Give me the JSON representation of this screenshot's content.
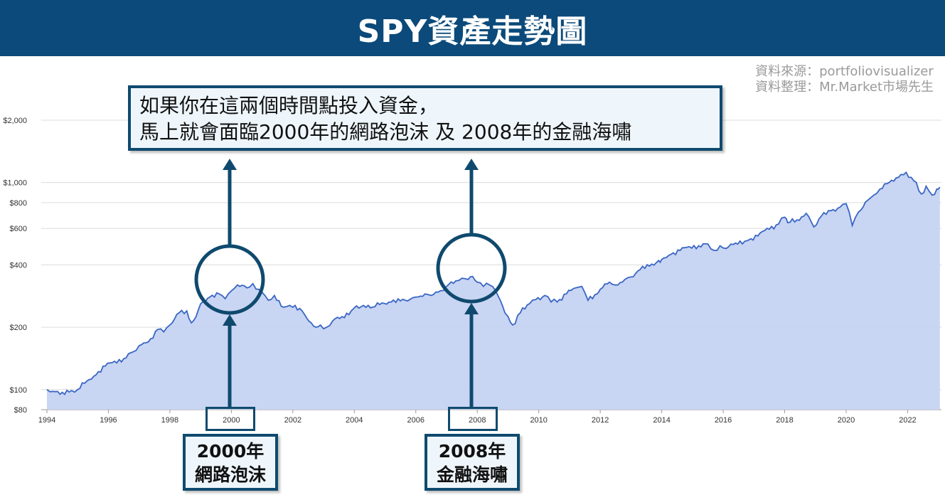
{
  "header": {
    "title": "SPY資產走勢圖"
  },
  "source": {
    "line1": "資料來源：portfoliovisualizer",
    "line2": "資料整理：Mr.Market市場先生"
  },
  "callout": {
    "line1": "如果你在這兩個時間點投入資金，",
    "line2": "馬上就會面臨2000年的網路泡沫 及 2008年的金融海嘯"
  },
  "labels": [
    {
      "line1": "2000年",
      "line2": "網路泡沫"
    },
    {
      "line1": "2008年",
      "line2": "金融海嘯"
    }
  ],
  "colors": {
    "header": "#0b4a7a",
    "line": "#3a66c4",
    "fill": "#c5d3f2",
    "annotation": "#0f4a6e"
  },
  "chart_data": {
    "type": "area",
    "title": "SPY資產走勢圖",
    "y_scale": "log",
    "ylim": [
      80,
      2150
    ],
    "xlim": [
      1993.9,
      2023.1
    ],
    "y_ticks": [
      {
        "value": 80,
        "label": "$80"
      },
      {
        "value": 100,
        "label": "$100"
      },
      {
        "value": 200,
        "label": "$200"
      },
      {
        "value": 400,
        "label": "$400"
      },
      {
        "value": 600,
        "label": "$600"
      },
      {
        "value": 800,
        "label": "$800"
      },
      {
        "value": 1000,
        "label": "$1,000"
      },
      {
        "value": 2000,
        "label": "$2,000"
      }
    ],
    "x_ticks": [
      "1994",
      "1996",
      "1998",
      "2000",
      "2002",
      "2004",
      "2006",
      "2008",
      "2010",
      "2012",
      "2014",
      "2016",
      "2018",
      "2020",
      "2022"
    ],
    "grid": "horizontal",
    "series": [
      {
        "points": [
          [
            1994.0,
            100
          ],
          [
            1994.2,
            98
          ],
          [
            1994.5,
            97
          ],
          [
            1994.8,
            99
          ],
          [
            1995.0,
            100
          ],
          [
            1995.3,
            110
          ],
          [
            1995.6,
            118
          ],
          [
            1995.9,
            130
          ],
          [
            1996.2,
            137
          ],
          [
            1996.5,
            141
          ],
          [
            1996.8,
            152
          ],
          [
            1997.0,
            163
          ],
          [
            1997.3,
            170
          ],
          [
            1997.6,
            195
          ],
          [
            1997.8,
            190
          ],
          [
            1998.0,
            205
          ],
          [
            1998.3,
            235
          ],
          [
            1998.55,
            240
          ],
          [
            1998.7,
            210
          ],
          [
            1998.85,
            225
          ],
          [
            1999.0,
            260
          ],
          [
            1999.3,
            280
          ],
          [
            1999.6,
            290
          ],
          [
            1999.8,
            275
          ],
          [
            2000.0,
            300
          ],
          [
            2000.2,
            320
          ],
          [
            2000.5,
            310
          ],
          [
            2000.7,
            325
          ],
          [
            2000.9,
            305
          ],
          [
            2001.0,
            295
          ],
          [
            2001.2,
            270
          ],
          [
            2001.4,
            285
          ],
          [
            2001.7,
            250
          ],
          [
            2001.9,
            255
          ],
          [
            2002.0,
            250
          ],
          [
            2002.3,
            240
          ],
          [
            2002.6,
            210
          ],
          [
            2002.75,
            200
          ],
          [
            2002.9,
            205
          ],
          [
            2003.1,
            200
          ],
          [
            2003.3,
            215
          ],
          [
            2003.6,
            225
          ],
          [
            2003.9,
            240
          ],
          [
            2004.0,
            248
          ],
          [
            2004.3,
            255
          ],
          [
            2004.6,
            250
          ],
          [
            2004.9,
            262
          ],
          [
            2005.2,
            265
          ],
          [
            2005.5,
            268
          ],
          [
            2005.8,
            272
          ],
          [
            2006.0,
            280
          ],
          [
            2006.3,
            290
          ],
          [
            2006.5,
            285
          ],
          [
            2006.8,
            300
          ],
          [
            2007.0,
            315
          ],
          [
            2007.3,
            335
          ],
          [
            2007.5,
            345
          ],
          [
            2007.7,
            340
          ],
          [
            2007.85,
            352
          ],
          [
            2008.0,
            330
          ],
          [
            2008.2,
            315
          ],
          [
            2008.4,
            320
          ],
          [
            2008.6,
            300
          ],
          [
            2008.75,
            270
          ],
          [
            2008.9,
            235
          ],
          [
            2009.0,
            225
          ],
          [
            2009.15,
            205
          ],
          [
            2009.4,
            235
          ],
          [
            2009.7,
            260
          ],
          [
            2009.9,
            272
          ],
          [
            2010.2,
            285
          ],
          [
            2010.4,
            265
          ],
          [
            2010.6,
            265
          ],
          [
            2010.9,
            290
          ],
          [
            2011.2,
            310
          ],
          [
            2011.4,
            315
          ],
          [
            2011.6,
            270
          ],
          [
            2011.9,
            290
          ],
          [
            2012.0,
            305
          ],
          [
            2012.3,
            330
          ],
          [
            2012.5,
            320
          ],
          [
            2012.8,
            340
          ],
          [
            2013.0,
            350
          ],
          [
            2013.3,
            380
          ],
          [
            2013.6,
            395
          ],
          [
            2013.9,
            420
          ],
          [
            2014.0,
            425
          ],
          [
            2014.3,
            450
          ],
          [
            2014.6,
            470
          ],
          [
            2014.9,
            490
          ],
          [
            2015.2,
            495
          ],
          [
            2015.5,
            505
          ],
          [
            2015.7,
            470
          ],
          [
            2015.9,
            495
          ],
          [
            2016.1,
            480
          ],
          [
            2016.4,
            510
          ],
          [
            2016.7,
            520
          ],
          [
            2016.9,
            535
          ],
          [
            2017.2,
            570
          ],
          [
            2017.5,
            595
          ],
          [
            2017.8,
            630
          ],
          [
            2018.0,
            680
          ],
          [
            2018.1,
            640
          ],
          [
            2018.4,
            660
          ],
          [
            2018.7,
            710
          ],
          [
            2018.95,
            610
          ],
          [
            2019.2,
            690
          ],
          [
            2019.5,
            730
          ],
          [
            2019.8,
            760
          ],
          [
            2020.0,
            790
          ],
          [
            2020.2,
            620
          ],
          [
            2020.4,
            720
          ],
          [
            2020.7,
            820
          ],
          [
            2020.9,
            870
          ],
          [
            2021.1,
            930
          ],
          [
            2021.4,
            1000
          ],
          [
            2021.7,
            1060
          ],
          [
            2021.95,
            1120
          ],
          [
            2022.2,
            1020
          ],
          [
            2022.45,
            880
          ],
          [
            2022.6,
            960
          ],
          [
            2022.8,
            870
          ],
          [
            2022.95,
            930
          ],
          [
            2023.05,
            950
          ]
        ]
      }
    ]
  }
}
